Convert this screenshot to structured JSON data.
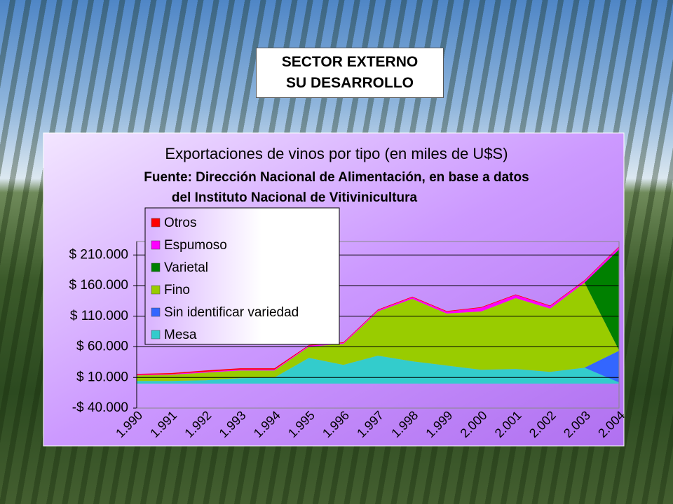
{
  "header": {
    "title_lines": [
      "SECTOR EXTERNO",
      "SU DESARROLLO"
    ]
  },
  "chart_data": {
    "type": "stacked_area",
    "title": "Exportaciones de vinos por tipo (en miles de U$S)",
    "subtitle": [
      "Fuente: Dirección Nacional de Alimentación, en base a datos",
      "del Instituto Nacional de Vitivinicultura"
    ],
    "categories": [
      "1.990",
      "1.991",
      "1.992",
      "1.993",
      "1.994",
      "1.995",
      "1.996",
      "1.997",
      "1.998",
      "1.999",
      "2.000",
      "2.001",
      "2.002",
      "2.003",
      "2.004"
    ],
    "series": [
      {
        "name": "Mesa",
        "color": "#33cccc",
        "values": [
          4300,
          4300,
          5400,
          8900,
          10000,
          42000,
          30600,
          45600,
          36400,
          29500,
          22600,
          23800,
          19200,
          26000,
          2000
        ]
      },
      {
        "name": "Sin identificar variedad",
        "color": "#3366ff",
        "values": [
          0,
          0,
          0,
          0,
          0,
          0,
          0,
          0,
          0,
          0,
          0,
          0,
          0,
          0,
          51600
        ]
      },
      {
        "name": "Fino",
        "color": "#99cc00",
        "values": [
          9100,
          10300,
          12600,
          12600,
          11500,
          18500,
          34400,
          72200,
          102100,
          84900,
          95200,
          115800,
          103200,
          138900,
          1000
        ]
      },
      {
        "name": "Varietal",
        "color": "#008000",
        "values": [
          0,
          0,
          0,
          0,
          0,
          0,
          0,
          0,
          0,
          0,
          0,
          0,
          0,
          0,
          164200
        ]
      },
      {
        "name": "Espumoso",
        "color": "#ff00ff",
        "values": [
          1000,
          1000,
          1500,
          1500,
          1500,
          1500,
          1500,
          2000,
          2500,
          3000,
          6000,
          5000,
          4000,
          3000,
          4000
        ]
      },
      {
        "name": "Otros",
        "color": "#ff0000",
        "values": [
          1500,
          1500,
          2000,
          2000,
          2000,
          1000,
          1000,
          1000,
          1000,
          1000,
          1000,
          1000,
          1000,
          1000,
          1000
        ]
      }
    ],
    "ylim": [
      -40000,
      232000
    ],
    "yticks": [
      {
        "value": -40000,
        "label": "-$ 40.000"
      },
      {
        "value": 10000,
        "label": "$ 10.000"
      },
      {
        "value": 60000,
        "label": "$ 60.000"
      },
      {
        "value": 110000,
        "label": "$ 110.000"
      },
      {
        "value": 160000,
        "label": "$ 160.000"
      },
      {
        "value": 210000,
        "label": "$ 210.000"
      }
    ],
    "grid": true,
    "legend": "upper left"
  }
}
